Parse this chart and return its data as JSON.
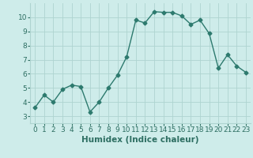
{
  "x": [
    0,
    1,
    2,
    3,
    4,
    5,
    6,
    7,
    8,
    9,
    10,
    11,
    12,
    13,
    14,
    15,
    16,
    17,
    18,
    19,
    20,
    21,
    22,
    23
  ],
  "y": [
    3.6,
    4.5,
    4.0,
    4.9,
    5.2,
    5.1,
    3.3,
    4.0,
    5.0,
    5.9,
    7.2,
    9.8,
    9.6,
    10.4,
    10.35,
    10.35,
    10.1,
    9.5,
    9.8,
    8.85,
    6.4,
    7.35,
    6.55,
    6.1
  ],
  "line_color": "#2d7a6e",
  "marker": "D",
  "marker_size": 2.5,
  "linewidth": 1.0,
  "xlabel": "Humidex (Indice chaleur)",
  "xlim": [
    -0.5,
    23.5
  ],
  "ylim": [
    2.5,
    11.0
  ],
  "yticks": [
    3,
    4,
    5,
    6,
    7,
    8,
    9,
    10
  ],
  "xticks": [
    0,
    1,
    2,
    3,
    4,
    5,
    6,
    7,
    8,
    9,
    10,
    11,
    12,
    13,
    14,
    15,
    16,
    17,
    18,
    19,
    20,
    21,
    22,
    23
  ],
  "xtick_labels": [
    "0",
    "1",
    "2",
    "3",
    "4",
    "5",
    "6",
    "7",
    "8",
    "9",
    "10",
    "11",
    "12",
    "13",
    "14",
    "15",
    "16",
    "17",
    "18",
    "19",
    "20",
    "21",
    "22",
    "23"
  ],
  "bg_color": "#ceecea",
  "grid_color": "#aed4d0",
  "tick_fontsize": 6.5,
  "label_fontsize": 7.5,
  "label_color": "#2d6e62",
  "tick_color": "#2d6e62"
}
